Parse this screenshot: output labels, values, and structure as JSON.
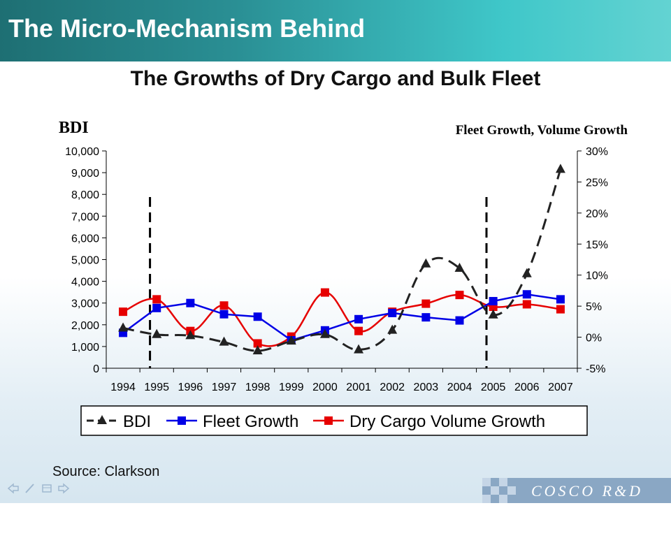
{
  "header": {
    "title": "The Micro-Mechanism Behind"
  },
  "chart_data": {
    "type": "line",
    "title": "The Growths of Dry Cargo and Bulk Fleet",
    "y_left_label": "BDI",
    "y_right_label": "Fleet Growth, Volume Growth",
    "categories": [
      "1994",
      "1995",
      "1996",
      "1997",
      "1998",
      "1999",
      "2000",
      "2001",
      "2002",
      "2003",
      "2004",
      "2005",
      "2006",
      "2007"
    ],
    "y_left_ticks": [
      "0",
      "1,000",
      "2,000",
      "3,000",
      "4,000",
      "5,000",
      "6,000",
      "7,000",
      "8,000",
      "9,000",
      "10,000"
    ],
    "y_right_ticks": [
      "-5%",
      "0%",
      "5%",
      "10%",
      "15%",
      "20%",
      "25%",
      "30%"
    ],
    "ylim_left": [
      0,
      10000
    ],
    "ylim_right": [
      -5,
      30
    ],
    "series": [
      {
        "name": "BDI",
        "axis": "left",
        "color": "#222222",
        "marker": "triangle",
        "dashed": true,
        "smooth": true,
        "values": [
          1850,
          1550,
          1500,
          1200,
          800,
          1250,
          1550,
          850,
          1750,
          4800,
          4600,
          2450,
          4350,
          9150
        ]
      },
      {
        "name": "Fleet Growth",
        "axis": "right",
        "color": "#0000e6",
        "marker": "square",
        "dashed": false,
        "smooth": false,
        "values": [
          0.7,
          4.7,
          5.5,
          3.7,
          3.3,
          -0.5,
          1.1,
          2.9,
          3.9,
          3.2,
          2.7,
          5.8,
          6.9,
          6.1
        ]
      },
      {
        "name": "Dry Cargo Volume Growth",
        "axis": "right",
        "color": "#e60000",
        "marker": "square",
        "dashed": false,
        "smooth": true,
        "values": [
          4.1,
          6.1,
          1.0,
          5.1,
          -1.0,
          0.1,
          7.2,
          1.0,
          4.1,
          5.4,
          6.8,
          4.9,
          5.3,
          4.5
        ]
      }
    ],
    "vertical_markers": [
      "1995",
      "2005"
    ],
    "legend_position": "bottom"
  },
  "source": "Source: Clarkson",
  "brand": {
    "text": "COSCO R&D"
  },
  "icons": [
    "back-arrow-icon",
    "pen-icon",
    "menu-icon",
    "forward-arrow-icon"
  ]
}
